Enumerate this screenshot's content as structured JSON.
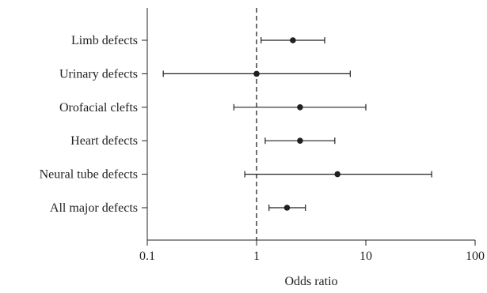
{
  "chart_data": {
    "type": "forest",
    "xlabel": "Odds ratio",
    "x_scale": "log",
    "xlim": [
      0.1,
      100
    ],
    "x_ticks": [
      "0.1",
      "1",
      "10",
      "100"
    ],
    "reference_line": 1,
    "grid": false,
    "categories": [
      "Limb defects",
      "Urinary defects",
      "Orofacial clefts",
      "Heart defects",
      "Neural tube defects",
      "All major defects"
    ],
    "estimates": [
      2.15,
      1.0,
      2.5,
      2.5,
      5.5,
      1.9
    ],
    "ci_lower": [
      1.1,
      0.14,
      0.62,
      1.2,
      0.78,
      1.3
    ],
    "ci_upper": [
      4.2,
      7.2,
      10.0,
      5.2,
      40.0,
      2.8
    ]
  }
}
